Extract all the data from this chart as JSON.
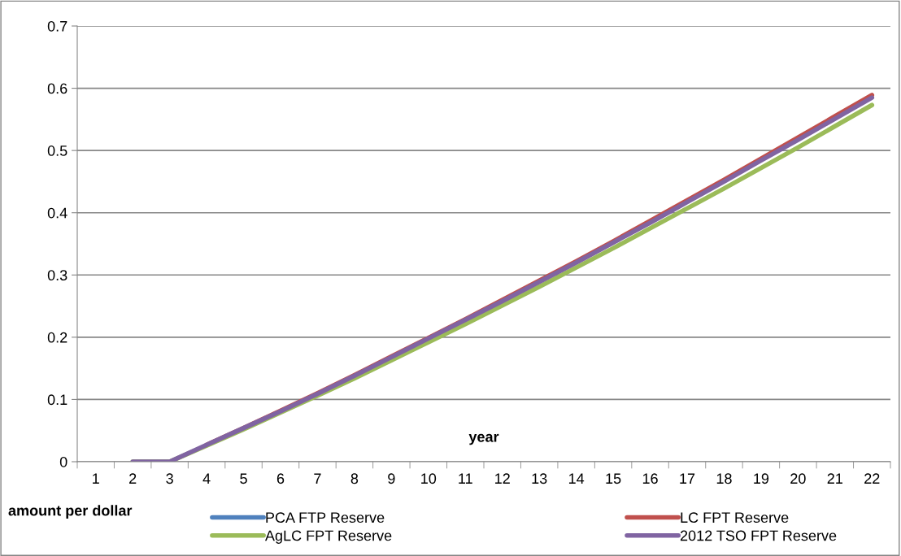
{
  "chart_data": {
    "type": "line",
    "xlabel": "year",
    "ylabel": "amount per dollar",
    "categories": [
      "1",
      "2",
      "3",
      "4",
      "5",
      "6",
      "7",
      "8",
      "9",
      "10",
      "11",
      "12",
      "13",
      "14",
      "15",
      "16",
      "17",
      "18",
      "19",
      "20",
      "21",
      "22"
    ],
    "series": [
      {
        "name": "PCA FTP Reserve",
        "color": "#4f81bd",
        "values": [
          null,
          null,
          null,
          null,
          null,
          null,
          null,
          null,
          null,
          null,
          null,
          null,
          null,
          null,
          null,
          null,
          null,
          null,
          null,
          null,
          null,
          null
        ]
      },
      {
        "name": "LC FPT Reserve",
        "color": "#c0504d",
        "values": [
          null,
          null,
          null,
          0.027,
          0.054,
          0.082,
          0.11,
          0.139,
          0.169,
          0.199,
          0.229,
          0.26,
          0.291,
          0.322,
          0.354,
          0.387,
          0.42,
          0.453,
          0.487,
          0.521,
          0.555,
          0.589
        ]
      },
      {
        "name": "AgLC FPT Reserve",
        "color": "#9bbb59",
        "values": [
          null,
          0,
          0,
          0.026,
          0.052,
          0.079,
          0.106,
          0.134,
          0.163,
          0.192,
          0.221,
          0.251,
          0.281,
          0.312,
          0.343,
          0.375,
          0.407,
          0.439,
          0.472,
          0.505,
          0.539,
          0.573
        ]
      },
      {
        "name": "2012 TSO FPT Reserve",
        "color": "#8064a2",
        "values": [
          null,
          0,
          0,
          0.027,
          0.054,
          0.081,
          0.109,
          0.138,
          0.168,
          0.198,
          0.228,
          0.258,
          0.289,
          0.32,
          0.352,
          0.384,
          0.417,
          0.45,
          0.484,
          0.517,
          0.551,
          0.585
        ]
      }
    ],
    "ylim": [
      0,
      0.7
    ],
    "yticks": [
      0,
      0.1,
      0.2,
      0.3,
      0.4,
      0.5,
      0.6,
      0.7
    ],
    "grid": "y",
    "legend": "bottom",
    "marker": "none",
    "line_style": "solid"
  }
}
